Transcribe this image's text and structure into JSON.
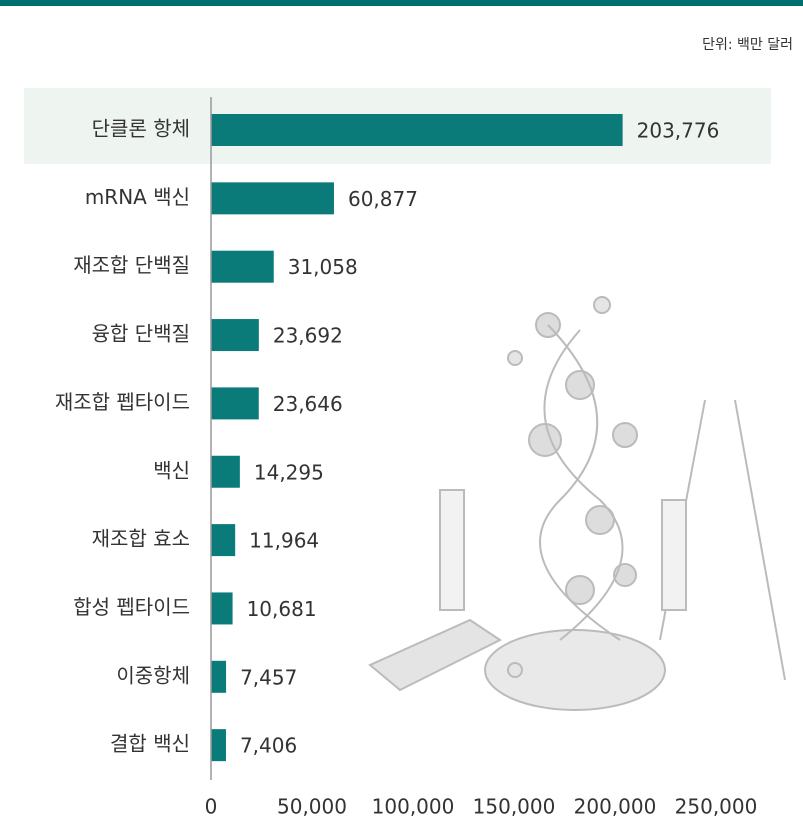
{
  "chart_data": {
    "type": "bar",
    "orientation": "horizontal",
    "unit_label": "단위: 백만 달러",
    "categories": [
      "단클론 항체",
      "mRNA 백신",
      "재조합 단백질",
      "융합 단백질",
      "재조합 펩타이드",
      "백신",
      "재조합 효소",
      "합성 펩타이드",
      "이중항체",
      "결합 백신"
    ],
    "values": [
      203776,
      60877,
      31058,
      23692,
      23646,
      14295,
      11964,
      10681,
      7457,
      7406
    ],
    "value_labels": [
      "203,776",
      "60,877",
      "31,058",
      "23,692",
      "23,646",
      "14,295",
      "11,964",
      "10,681",
      "7,457",
      "7,406"
    ],
    "color": "#0b7b7a",
    "xlim": [
      0,
      250000
    ],
    "xticks": [
      0,
      {
        "value": 50000,
        "label": "50,000"
      },
      {
        "value": 100000,
        "label": "100,000"
      },
      {
        "value": 150000,
        "label": "150,000"
      },
      {
        "value": 200000,
        "label": "200,000"
      },
      {
        "value": 250000,
        "label": "250,000"
      }
    ],
    "grid": false
  }
}
